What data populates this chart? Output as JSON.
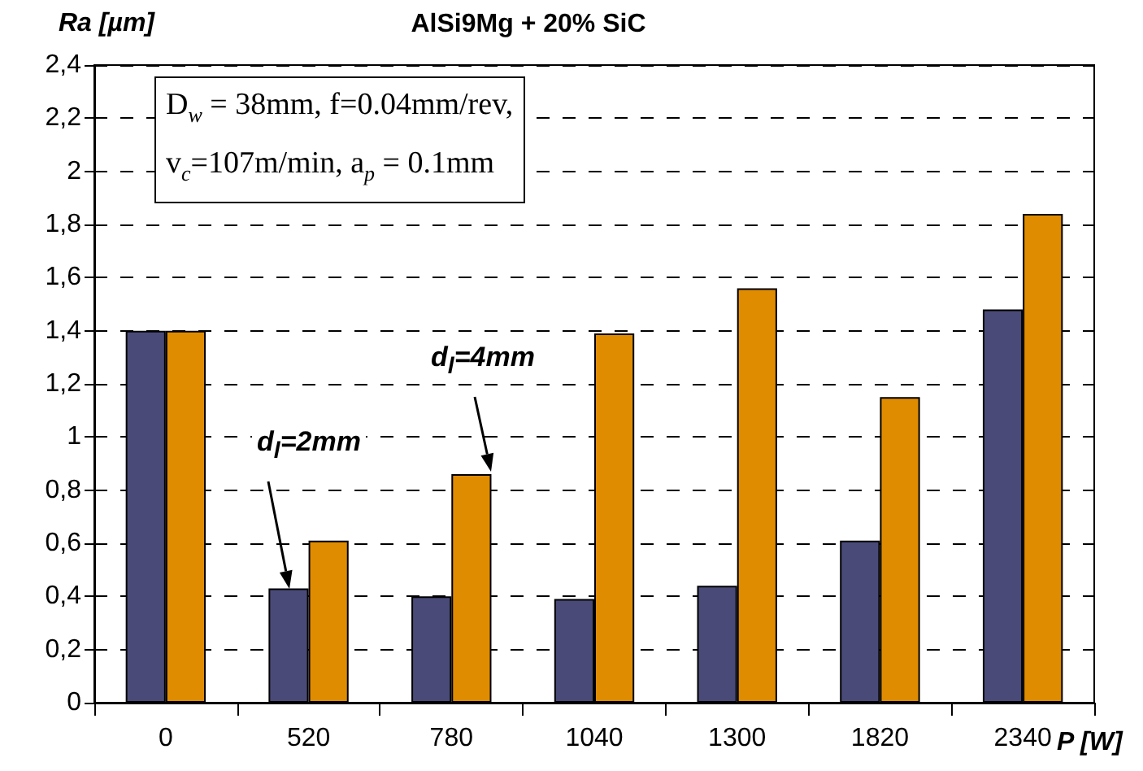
{
  "chart_data": {
    "type": "bar",
    "title": "AlSi9Mg + 20% SiC",
    "ylabel": "Ra [µm]",
    "xlabel": "P [W]",
    "categories": [
      "0",
      "520",
      "780",
      "1040",
      "1300",
      "1820",
      "2340"
    ],
    "series": [
      {
        "color": "#4a4a78",
        "values": [
          1.4,
          0.43,
          0.4,
          0.39,
          0.44,
          0.61,
          1.48
        ]
      },
      {
        "color": "#e08c00",
        "values": [
          1.4,
          0.61,
          0.86,
          1.39,
          1.56,
          1.15,
          1.84
        ]
      }
    ],
    "ylim": [
      0,
      2.4
    ],
    "yticks": [
      0,
      {
        "value": 0.2,
        "label": "0,2"
      },
      {
        "value": 0.4,
        "label": "0,4"
      },
      {
        "value": 0.6,
        "label": "0,6"
      },
      {
        "value": 0.8,
        "label": "0,8"
      },
      1,
      {
        "value": 1.2,
        "label": "1,2"
      },
      {
        "value": 1.4,
        "label": "1,4"
      },
      {
        "value": 1.6,
        "label": "1,6"
      },
      {
        "value": 1.8,
        "label": "1,8"
      },
      2,
      {
        "value": 2.2,
        "label": "2,2"
      },
      {
        "value": 2.4,
        "label": "2,4"
      }
    ],
    "grid": "y",
    "annotations": [
      "D$_{w}$ = 38mm, f=0.04mm/rev, v$_{c}$=107m/min, a$_{p}$ = 0.1mm",
      "d$_{l}$=2mm",
      "d$_{l}$=4mm"
    ]
  }
}
